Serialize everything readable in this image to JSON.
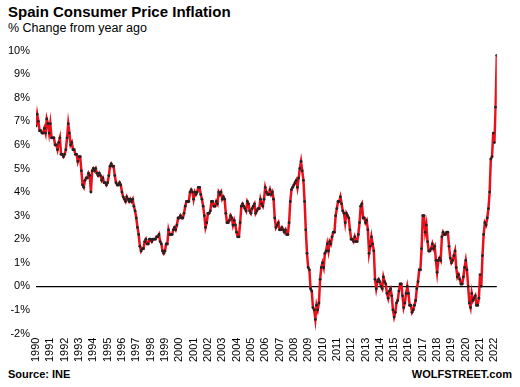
{
  "chart_data": {
    "type": "line",
    "title": "Spain Consumer Price Inflation",
    "subtitle": "% Change from year ago",
    "annotations": [
      "Source: INE",
      "WOLFSTREET.com"
    ],
    "categories": [
      "1990",
      null,
      null,
      null,
      null,
      null,
      null,
      null,
      null,
      null,
      null,
      null,
      "1991",
      null,
      null,
      null,
      null,
      null,
      null,
      null,
      null,
      null,
      null,
      null,
      "1992",
      null,
      null,
      null,
      null,
      null,
      null,
      null,
      null,
      null,
      null,
      null,
      "1993",
      null,
      null,
      null,
      null,
      null,
      null,
      null,
      null,
      null,
      null,
      null,
      "1994",
      null,
      null,
      null,
      null,
      null,
      null,
      null,
      null,
      null,
      null,
      null,
      "1995",
      null,
      null,
      null,
      null,
      null,
      null,
      null,
      null,
      null,
      null,
      null,
      "1996",
      null,
      null,
      null,
      null,
      null,
      null,
      null,
      null,
      null,
      null,
      null,
      "1997",
      null,
      null,
      null,
      null,
      null,
      null,
      null,
      null,
      null,
      null,
      null,
      "1998",
      null,
      null,
      null,
      null,
      null,
      null,
      null,
      null,
      null,
      null,
      null,
      "1999",
      null,
      null,
      null,
      null,
      null,
      null,
      null,
      null,
      null,
      null,
      null,
      "2000",
      null,
      null,
      null,
      null,
      null,
      null,
      null,
      null,
      null,
      null,
      null,
      "2001",
      null,
      null,
      null,
      null,
      null,
      null,
      null,
      null,
      null,
      null,
      null,
      "2002",
      null,
      null,
      null,
      null,
      null,
      null,
      null,
      null,
      null,
      null,
      null,
      "2003",
      null,
      null,
      null,
      null,
      null,
      null,
      null,
      null,
      null,
      null,
      null,
      "2004",
      null,
      null,
      null,
      null,
      null,
      null,
      null,
      null,
      null,
      null,
      null,
      "2005",
      null,
      null,
      null,
      null,
      null,
      null,
      null,
      null,
      null,
      null,
      null,
      "2006",
      null,
      null,
      null,
      null,
      null,
      null,
      null,
      null,
      null,
      null,
      null,
      "2007",
      null,
      null,
      null,
      null,
      null,
      null,
      null,
      null,
      null,
      null,
      null,
      "2008",
      null,
      null,
      null,
      null,
      null,
      null,
      null,
      null,
      null,
      null,
      null,
      "2009",
      null,
      null,
      null,
      null,
      null,
      null,
      null,
      null,
      null,
      null,
      null,
      "2010",
      null,
      null,
      null,
      null,
      null,
      null,
      null,
      null,
      null,
      null,
      null,
      "2011",
      null,
      null,
      null,
      null,
      null,
      null,
      null,
      null,
      null,
      null,
      null,
      "2012",
      null,
      null,
      null,
      null,
      null,
      null,
      null,
      null,
      null,
      null,
      null,
      "2013",
      null,
      null,
      null,
      null,
      null,
      null,
      null,
      null,
      null,
      null,
      null,
      "2014",
      null,
      null,
      null,
      null,
      null,
      null,
      null,
      null,
      null,
      null,
      null,
      "2015",
      null,
      null,
      null,
      null,
      null,
      null,
      null,
      null,
      null,
      null,
      null,
      "2016",
      null,
      null,
      null,
      null,
      null,
      null,
      null,
      null,
      null,
      null,
      null,
      "2017",
      null,
      null,
      null,
      null,
      null,
      null,
      null,
      null,
      null,
      null,
      null,
      "2018",
      null,
      null,
      null,
      null,
      null,
      null,
      null,
      null,
      null,
      null,
      null,
      "2019",
      null,
      null,
      null,
      null,
      null,
      null,
      null,
      null,
      null,
      null,
      null,
      "2020",
      null,
      null,
      null,
      null,
      null,
      null,
      null,
      null,
      null,
      null,
      null,
      "2021",
      null,
      null,
      null,
      null,
      null,
      null,
      null,
      null,
      null,
      null,
      null,
      "2022",
      null,
      null
    ],
    "values": [
      6.8,
      7.3,
      7.0,
      6.6,
      6.6,
      6.5,
      6.5,
      6.7,
      6.5,
      7.1,
      6.9,
      6.5,
      6.9,
      6.3,
      6.3,
      6.3,
      6.0,
      6.0,
      5.8,
      6.1,
      6.3,
      5.6,
      5.6,
      5.5,
      5.6,
      5.8,
      6.3,
      6.9,
      6.5,
      6.0,
      6.1,
      5.8,
      5.8,
      5.6,
      5.6,
      5.3,
      5.5,
      5.5,
      4.9,
      4.3,
      4.2,
      4.5,
      4.6,
      4.6,
      4.8,
      4.7,
      4.0,
      4.9,
      5.0,
      4.9,
      5.0,
      4.8,
      4.7,
      4.8,
      4.7,
      4.5,
      4.6,
      4.4,
      4.4,
      4.3,
      4.4,
      4.7,
      5.1,
      5.2,
      5.1,
      5.1,
      4.7,
      4.4,
      4.3,
      4.3,
      4.4,
      4.3,
      4.0,
      3.8,
      3.7,
      3.6,
      3.8,
      3.7,
      3.6,
      3.7,
      3.6,
      3.7,
      3.4,
      3.2,
      2.9,
      2.5,
      2.2,
      1.7,
      1.5,
      1.6,
      1.6,
      1.9,
      2.0,
      1.8,
      1.8,
      2.0,
      2.0,
      1.9,
      2.0,
      2.0,
      2.0,
      2.1,
      2.1,
      2.2,
      1.9,
      1.8,
      1.5,
      1.4,
      1.5,
      1.8,
      1.8,
      2.4,
      2.2,
      2.2,
      2.2,
      2.4,
      2.5,
      2.4,
      2.6,
      2.9,
      2.9,
      3.0,
      2.9,
      2.9,
      3.1,
      3.4,
      3.6,
      3.6,
      3.6,
      4.0,
      4.1,
      4.0,
      3.7,
      4.0,
      3.9,
      4.0,
      4.2,
      4.2,
      3.9,
      3.7,
      3.4,
      3.0,
      2.5,
      2.7,
      3.1,
      3.1,
      3.2,
      3.6,
      3.6,
      3.4,
      3.4,
      3.6,
      3.5,
      4.0,
      3.9,
      4.0,
      3.7,
      3.8,
      3.7,
      3.1,
      2.7,
      2.7,
      2.8,
      3.0,
      2.9,
      2.6,
      2.8,
      2.6,
      2.3,
      2.1,
      2.1,
      2.7,
      3.4,
      3.5,
      3.4,
      3.3,
      3.2,
      3.6,
      3.5,
      3.2,
      3.1,
      3.3,
      3.4,
      3.5,
      3.1,
      3.2,
      3.3,
      3.3,
      3.7,
      3.5,
      3.4,
      3.7,
      4.2,
      4.0,
      3.9,
      3.9,
      4.1,
      3.9,
      4.0,
      3.7,
      2.9,
      2.5,
      2.6,
      2.7,
      2.4,
      2.4,
      2.5,
      2.4,
      2.3,
      2.4,
      2.2,
      2.2,
      2.7,
      3.6,
      4.1,
      4.2,
      4.3,
      4.4,
      4.5,
      4.2,
      4.6,
      5.0,
      5.3,
      4.9,
      4.5,
      3.6,
      2.4,
      1.4,
      0.8,
      0.7,
      -0.1,
      -0.2,
      -0.9,
      -1.0,
      -1.4,
      -0.8,
      -1.0,
      -0.7,
      0.3,
      0.8,
      1.0,
      0.8,
      1.4,
      1.5,
      1.8,
      1.5,
      1.9,
      1.8,
      2.1,
      2.3,
      2.3,
      3.0,
      3.3,
      3.6,
      3.6,
      3.8,
      3.5,
      3.2,
      3.1,
      2.7,
      3.1,
      3.0,
      2.9,
      2.4,
      2.0,
      2.0,
      1.9,
      2.1,
      1.9,
      1.9,
      2.2,
      2.7,
      3.4,
      3.5,
      2.9,
      2.9,
      2.7,
      2.8,
      2.4,
      1.4,
      1.7,
      2.1,
      1.8,
      1.5,
      0.3,
      -0.1,
      0.2,
      0.3,
      0.2,
      0.0,
      -0.1,
      0.4,
      0.2,
      0.1,
      -0.3,
      -0.5,
      -0.2,
      -0.1,
      -0.4,
      -1.0,
      -1.3,
      -1.1,
      -0.7,
      -0.6,
      -0.2,
      0.1,
      0.1,
      -0.4,
      -0.9,
      -0.7,
      -0.3,
      0.0,
      -0.3,
      -0.8,
      -0.8,
      -1.1,
      -1.0,
      -0.8,
      -0.6,
      -0.1,
      0.2,
      0.7,
      0.7,
      1.6,
      3.0,
      3.0,
      2.3,
      2.6,
      1.9,
      1.5,
      1.5,
      1.6,
      1.8,
      1.6,
      1.7,
      1.1,
      0.6,
      1.1,
      1.2,
      1.1,
      2.1,
      2.3,
      2.2,
      2.2,
      2.3,
      2.3,
      1.7,
      1.2,
      1.0,
      1.1,
      1.3,
      1.5,
      0.8,
      0.4,
      0.5,
      0.3,
      0.1,
      0.1,
      0.4,
      0.8,
      1.1,
      0.7,
      0.0,
      -0.7,
      -0.9,
      -0.3,
      -0.6,
      -0.5,
      -0.4,
      -0.8,
      -0.8,
      -0.5,
      0.5,
      0.0,
      1.3,
      2.2,
      2.7,
      2.6,
      2.9,
      3.3,
      4.0,
      5.4,
      5.5,
      6.5,
      6.1,
      7.6,
      9.8
    ],
    "color": "#e8101a",
    "marker": "circle",
    "ylim": [
      -2,
      10
    ],
    "yticks": [
      {
        "value": -2,
        "label": "-2%"
      },
      {
        "value": -1,
        "label": "-1%"
      },
      {
        "value": 0,
        "label": "0%"
      },
      {
        "value": 1,
        "label": "1%"
      },
      {
        "value": 2,
        "label": "2%"
      },
      {
        "value": 3,
        "label": "3%"
      },
      {
        "value": 4,
        "label": "4%"
      },
      {
        "value": 5,
        "label": "5%"
      },
      {
        "value": 6,
        "label": "6%"
      },
      {
        "value": 7,
        "label": "7%"
      },
      {
        "value": 8,
        "label": "8%"
      },
      {
        "value": 9,
        "label": "9%"
      },
      {
        "value": 10,
        "label": "10%"
      }
    ],
    "grid": false
  }
}
